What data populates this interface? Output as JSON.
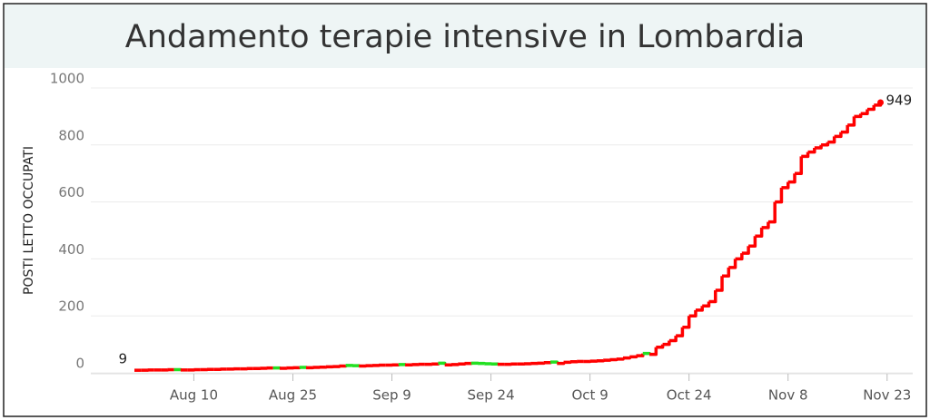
{
  "chart_data": {
    "type": "line",
    "title": "Andamento terapie intensive in Lombardia",
    "y_label": "POSTI LETTO OCCUPATI",
    "x": [
      "Aug 1",
      "Aug 2",
      "Aug 3",
      "Aug 4",
      "Aug 5",
      "Aug 6",
      "Aug 7",
      "Aug 8",
      "Aug 9",
      "Aug 10",
      "Aug 11",
      "Aug 12",
      "Aug 13",
      "Aug 14",
      "Aug 15",
      "Aug 16",
      "Aug 17",
      "Aug 18",
      "Aug 19",
      "Aug 20",
      "Aug 21",
      "Aug 22",
      "Aug 23",
      "Aug 24",
      "Aug 25",
      "Aug 26",
      "Aug 27",
      "Aug 28",
      "Aug 29",
      "Aug 30",
      "Aug 31",
      "Sep 1",
      "Sep 2",
      "Sep 3",
      "Sep 4",
      "Sep 5",
      "Sep 6",
      "Sep 7",
      "Sep 8",
      "Sep 9",
      "Sep 10",
      "Sep 11",
      "Sep 12",
      "Sep 13",
      "Sep 14",
      "Sep 15",
      "Sep 16",
      "Sep 17",
      "Sep 18",
      "Sep 19",
      "Sep 20",
      "Sep 21",
      "Sep 22",
      "Sep 23",
      "Sep 24",
      "Sep 25",
      "Sep 26",
      "Sep 27",
      "Sep 28",
      "Sep 29",
      "Sep 30",
      "Oct 1",
      "Oct 2",
      "Oct 3",
      "Oct 4",
      "Oct 5",
      "Oct 6",
      "Oct 7",
      "Oct 8",
      "Oct 9",
      "Oct 10",
      "Oct 11",
      "Oct 12",
      "Oct 13",
      "Oct 14",
      "Oct 15",
      "Oct 16",
      "Oct 17",
      "Oct 18",
      "Oct 19",
      "Oct 20",
      "Oct 21",
      "Oct 22",
      "Oct 23",
      "Oct 24",
      "Oct 25",
      "Oct 26",
      "Oct 27",
      "Oct 28",
      "Oct 29",
      "Oct 30",
      "Oct 31",
      "Nov 1",
      "Nov 2",
      "Nov 3",
      "Nov 4",
      "Nov 5",
      "Nov 6",
      "Nov 7",
      "Nov 8",
      "Nov 9",
      "Nov 10",
      "Nov 11",
      "Nov 12",
      "Nov 13",
      "Nov 14",
      "Nov 15",
      "Nov 16",
      "Nov 17",
      "Nov 18",
      "Nov 19",
      "Nov 20",
      "Nov 21",
      "Nov 22"
    ],
    "values": [
      9,
      9,
      10,
      10,
      10,
      11,
      11,
      10,
      10,
      11,
      11,
      12,
      12,
      13,
      13,
      14,
      14,
      15,
      15,
      16,
      17,
      17,
      16,
      17,
      18,
      19,
      18,
      19,
      20,
      21,
      22,
      24,
      26,
      25,
      24,
      25,
      26,
      27,
      27,
      28,
      29,
      28,
      29,
      30,
      30,
      31,
      34,
      28,
      29,
      31,
      33,
      34,
      33,
      32,
      31,
      30,
      30,
      31,
      31,
      32,
      33,
      34,
      36,
      38,
      33,
      37,
      39,
      40,
      40,
      41,
      42,
      44,
      46,
      48,
      52,
      56,
      60,
      68,
      65,
      90,
      100,
      113,
      130,
      160,
      200,
      220,
      235,
      250,
      290,
      340,
      370,
      400,
      420,
      445,
      480,
      510,
      530,
      600,
      650,
      670,
      700,
      760,
      775,
      790,
      800,
      810,
      830,
      845,
      870,
      900,
      910,
      925,
      940,
      949
    ],
    "colors": {
      "increase": "#ff0000",
      "decrease": "#22e022"
    },
    "xticks": [
      "Aug 10",
      "Aug 25",
      "Sep 9",
      "Sep 24",
      "Oct 9",
      "Oct 24",
      "Nov 8",
      "Nov 23"
    ],
    "ylim": [
      0,
      1000
    ],
    "yticks": [
      0,
      200,
      400,
      600,
      800,
      1000
    ],
    "grid": true
  }
}
